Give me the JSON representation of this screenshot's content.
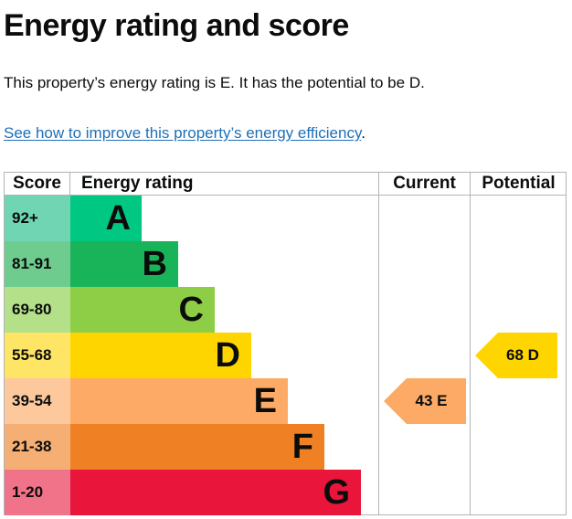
{
  "title": "Energy rating and score",
  "summary": "This property’s energy rating is E. It has the potential to be D.",
  "link": {
    "text": "See how to improve this property’s energy efficiency",
    "suffix": "."
  },
  "table": {
    "headers": {
      "score": "Score",
      "rating": "Energy rating",
      "current": "Current",
      "potential": "Potential"
    }
  },
  "bands": [
    {
      "score": "92+",
      "letter": "A",
      "color": "#00c781",
      "light": "#6fd5b3"
    },
    {
      "score": "81-91",
      "letter": "B",
      "color": "#19b459",
      "light": "#6fcc8f"
    },
    {
      "score": "69-80",
      "letter": "C",
      "color": "#8dce46",
      "light": "#b5e08a"
    },
    {
      "score": "55-68",
      "letter": "D",
      "color": "#ffd500",
      "light": "#ffe566"
    },
    {
      "score": "39-54",
      "letter": "E",
      "color": "#fcaa65",
      "light": "#fdc99c"
    },
    {
      "score": "21-38",
      "letter": "F",
      "color": "#ef8023",
      "light": "#f5ae73"
    },
    {
      "score": "1-20",
      "letter": "G",
      "color": "#e9153b",
      "light": "#f07389"
    }
  ],
  "current": {
    "text": "43  E",
    "score": 43,
    "band": "E",
    "color": "#fcaa65"
  },
  "potential": {
    "text": "68  D",
    "score": 68,
    "band": "D",
    "color": "#ffd500"
  }
}
